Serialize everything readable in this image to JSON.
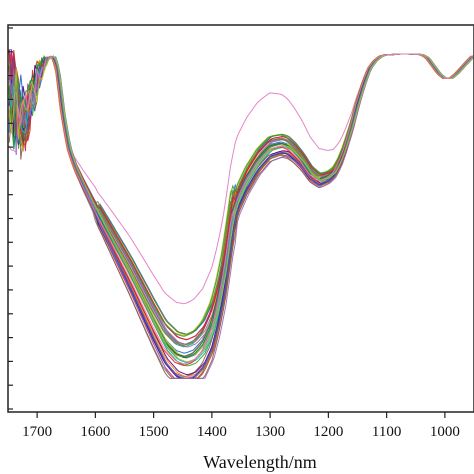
{
  "chart_data": {
    "type": "line",
    "title": "",
    "xlabel": "Wavelength/nm",
    "ylabel": "",
    "x_reversed": true,
    "xlim": [
      1750,
      950
    ],
    "ylim": [
      0,
      1
    ],
    "x_ticks": [
      1700,
      1600,
      1500,
      1400,
      1300,
      1200,
      1100,
      1000
    ],
    "x_tick_labels": [
      "1700",
      "1600",
      "1500",
      "1400",
      "1300",
      "1200",
      "1100",
      "1000"
    ],
    "y_tick_count": 17,
    "y_tick_labels_visible": false,
    "grid": false,
    "legend": "none",
    "series_count": 40,
    "series_colors": [
      "#1f5fd6",
      "#d62728",
      "#2ca02c",
      "#8c564b",
      "#17becf",
      "#9467bd",
      "#bcbd22",
      "#e377c2",
      "#7f7f7f",
      "#ff7f0e",
      "#0b6e4f",
      "#b5651d",
      "#4b0082",
      "#00a86b",
      "#c71585",
      "#6b8e23"
    ],
    "reference_profile": {
      "x": [
        1748,
        1735,
        1720,
        1705,
        1690,
        1680,
        1672,
        1665,
        1655,
        1645,
        1635,
        1620,
        1600,
        1580,
        1560,
        1540,
        1520,
        1500,
        1480,
        1460,
        1445,
        1430,
        1415,
        1400,
        1390,
        1380,
        1372,
        1365,
        1355,
        1340,
        1320,
        1300,
        1280,
        1270,
        1260,
        1245,
        1230,
        1215,
        1200,
        1190,
        1180,
        1172,
        1160,
        1150,
        1140,
        1130,
        1120,
        1110,
        1100,
        1090,
        1080,
        1060,
        1040,
        1030,
        1020,
        1010,
        1000,
        990,
        980,
        970,
        960,
        952
      ],
      "y": [
        0.95,
        0.85,
        0.8,
        0.9,
        0.97,
        0.985,
        0.99,
        0.95,
        0.8,
        0.7,
        0.645,
        0.585,
        0.51,
        0.44,
        0.37,
        0.3,
        0.225,
        0.15,
        0.08,
        0.04,
        0.03,
        0.04,
        0.07,
        0.13,
        0.2,
        0.29,
        0.39,
        0.48,
        0.54,
        0.6,
        0.66,
        0.7,
        0.71,
        0.705,
        0.69,
        0.66,
        0.62,
        0.6,
        0.61,
        0.625,
        0.66,
        0.7,
        0.77,
        0.84,
        0.9,
        0.95,
        0.975,
        0.99,
        0.995,
        0.995,
        0.997,
        0.997,
        0.995,
        0.985,
        0.96,
        0.935,
        0.92,
        0.92,
        0.935,
        0.955,
        0.975,
        0.99
      ]
    }
  }
}
